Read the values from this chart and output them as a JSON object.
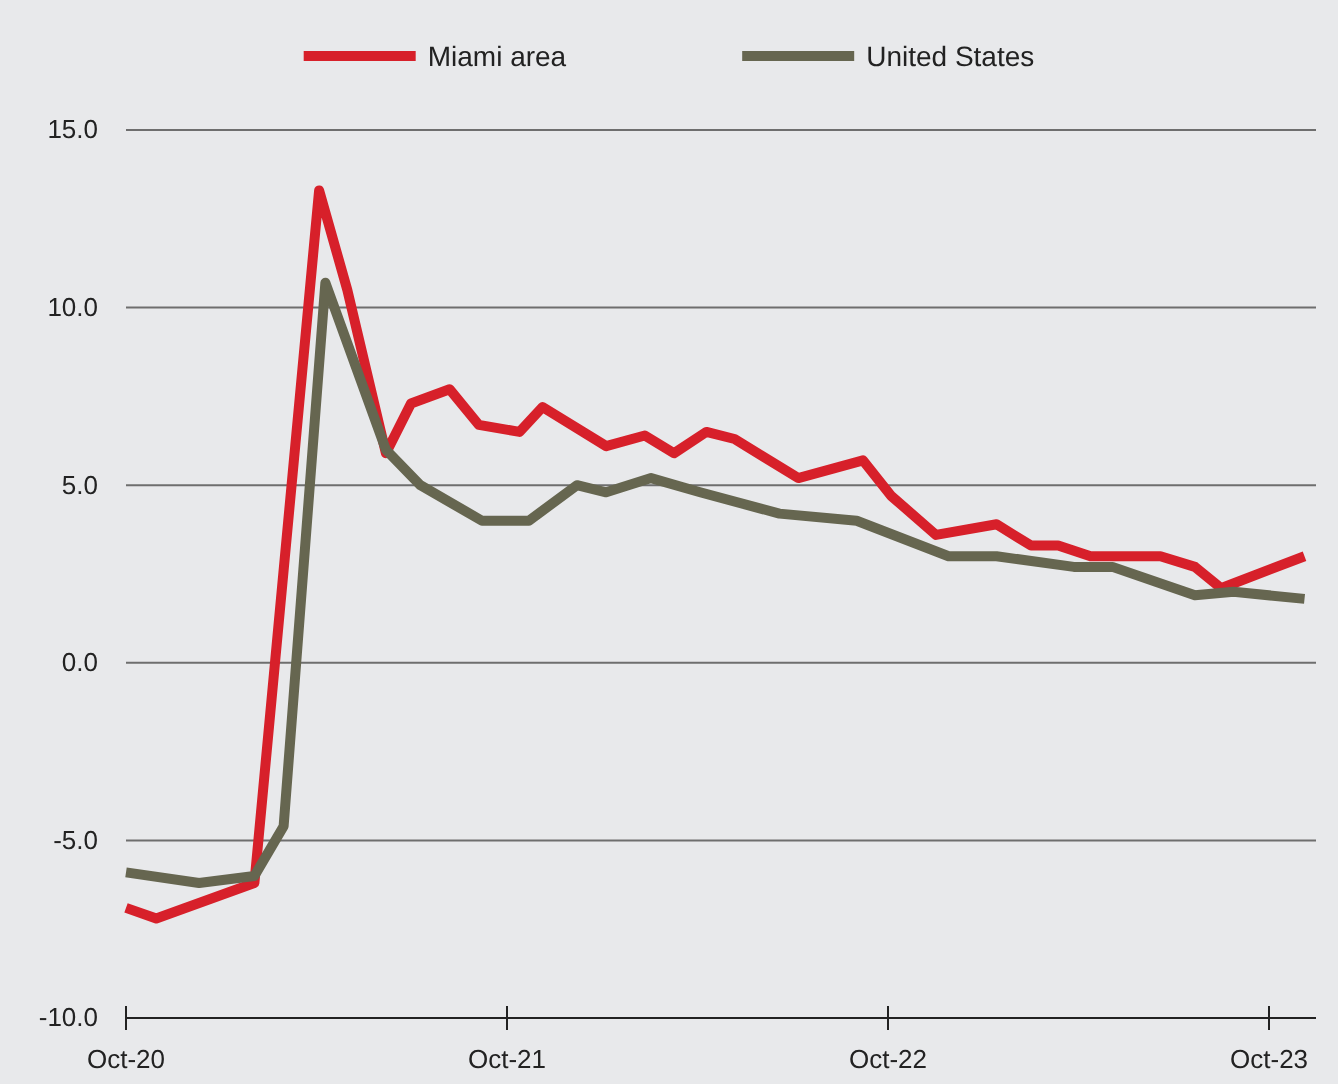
{
  "chart_data": {
    "type": "line",
    "legend": "top",
    "grid": "y",
    "marker": "none",
    "line_style": "solid",
    "xlim": [
      "2020-10-01",
      "2023-11-15"
    ],
    "xticks": [
      {
        "value": "2020-10",
        "label": "Oct-20"
      },
      {
        "value": "2021-10",
        "label": "Oct-21"
      },
      {
        "value": "2022-10",
        "label": "Oct-22"
      },
      {
        "value": "2023-10",
        "label": "Oct-23"
      }
    ],
    "ylim": [
      -10,
      15
    ],
    "yticks": [
      {
        "value": -10,
        "label": "-10.0"
      },
      {
        "value": -5,
        "label": "-5.0"
      },
      {
        "value": 0,
        "label": "0.0"
      },
      {
        "value": 5,
        "label": "5.0"
      },
      {
        "value": 10,
        "label": "10.0"
      },
      {
        "value": 15,
        "label": "15.0"
      }
    ],
    "series": [
      {
        "name": "Miami area",
        "color": "#d7202a",
        "x": [
          "2020-10-01",
          "2020-10-30",
          "2021-02-01",
          "2021-04-04",
          "2021-05-01",
          "2021-06-07",
          "2021-07-01",
          "2021-08-07",
          "2021-09-04",
          "2021-10-13",
          "2021-11-04",
          "2022-01-04",
          "2022-02-10",
          "2022-03-10",
          "2022-04-10",
          "2022-05-07",
          "2022-07-07",
          "2022-09-07",
          "2022-10-04",
          "2022-11-16",
          "2023-01-13",
          "2023-02-15",
          "2023-03-13",
          "2023-04-13",
          "2023-06-19",
          "2023-07-22",
          "2023-08-16",
          "2023-11-04"
        ],
        "values": [
          -6.9,
          -7.2,
          -6.2,
          13.3,
          10.5,
          5.9,
          7.3,
          7.7,
          6.7,
          6.5,
          7.2,
          6.1,
          6.4,
          5.9,
          6.5,
          6.3,
          5.2,
          5.7,
          4.7,
          3.6,
          3.9,
          3.3,
          3.3,
          3.0,
          3.0,
          2.7,
          2.1,
          3.0
        ]
      },
      {
        "name": "United States",
        "color": "#666650",
        "x": [
          "2020-10-01",
          "2020-12-10",
          "2021-02-01",
          "2021-03-01",
          "2021-04-10",
          "2021-06-07",
          "2021-07-10",
          "2021-09-07",
          "2021-10-22",
          "2021-12-07",
          "2022-01-04",
          "2022-02-16",
          "2022-04-04",
          "2022-06-19",
          "2022-09-01",
          "2022-11-28",
          "2023-01-13",
          "2023-03-28",
          "2023-05-04",
          "2023-07-22",
          "2023-08-28",
          "2023-11-04"
        ],
        "values": [
          -5.9,
          -6.2,
          -6.0,
          -4.6,
          10.7,
          6.0,
          5.0,
          4.0,
          4.0,
          5.0,
          4.8,
          5.2,
          4.8,
          4.2,
          4.0,
          3.0,
          3.0,
          2.7,
          2.7,
          1.9,
          2.0,
          1.8
        ]
      }
    ]
  }
}
